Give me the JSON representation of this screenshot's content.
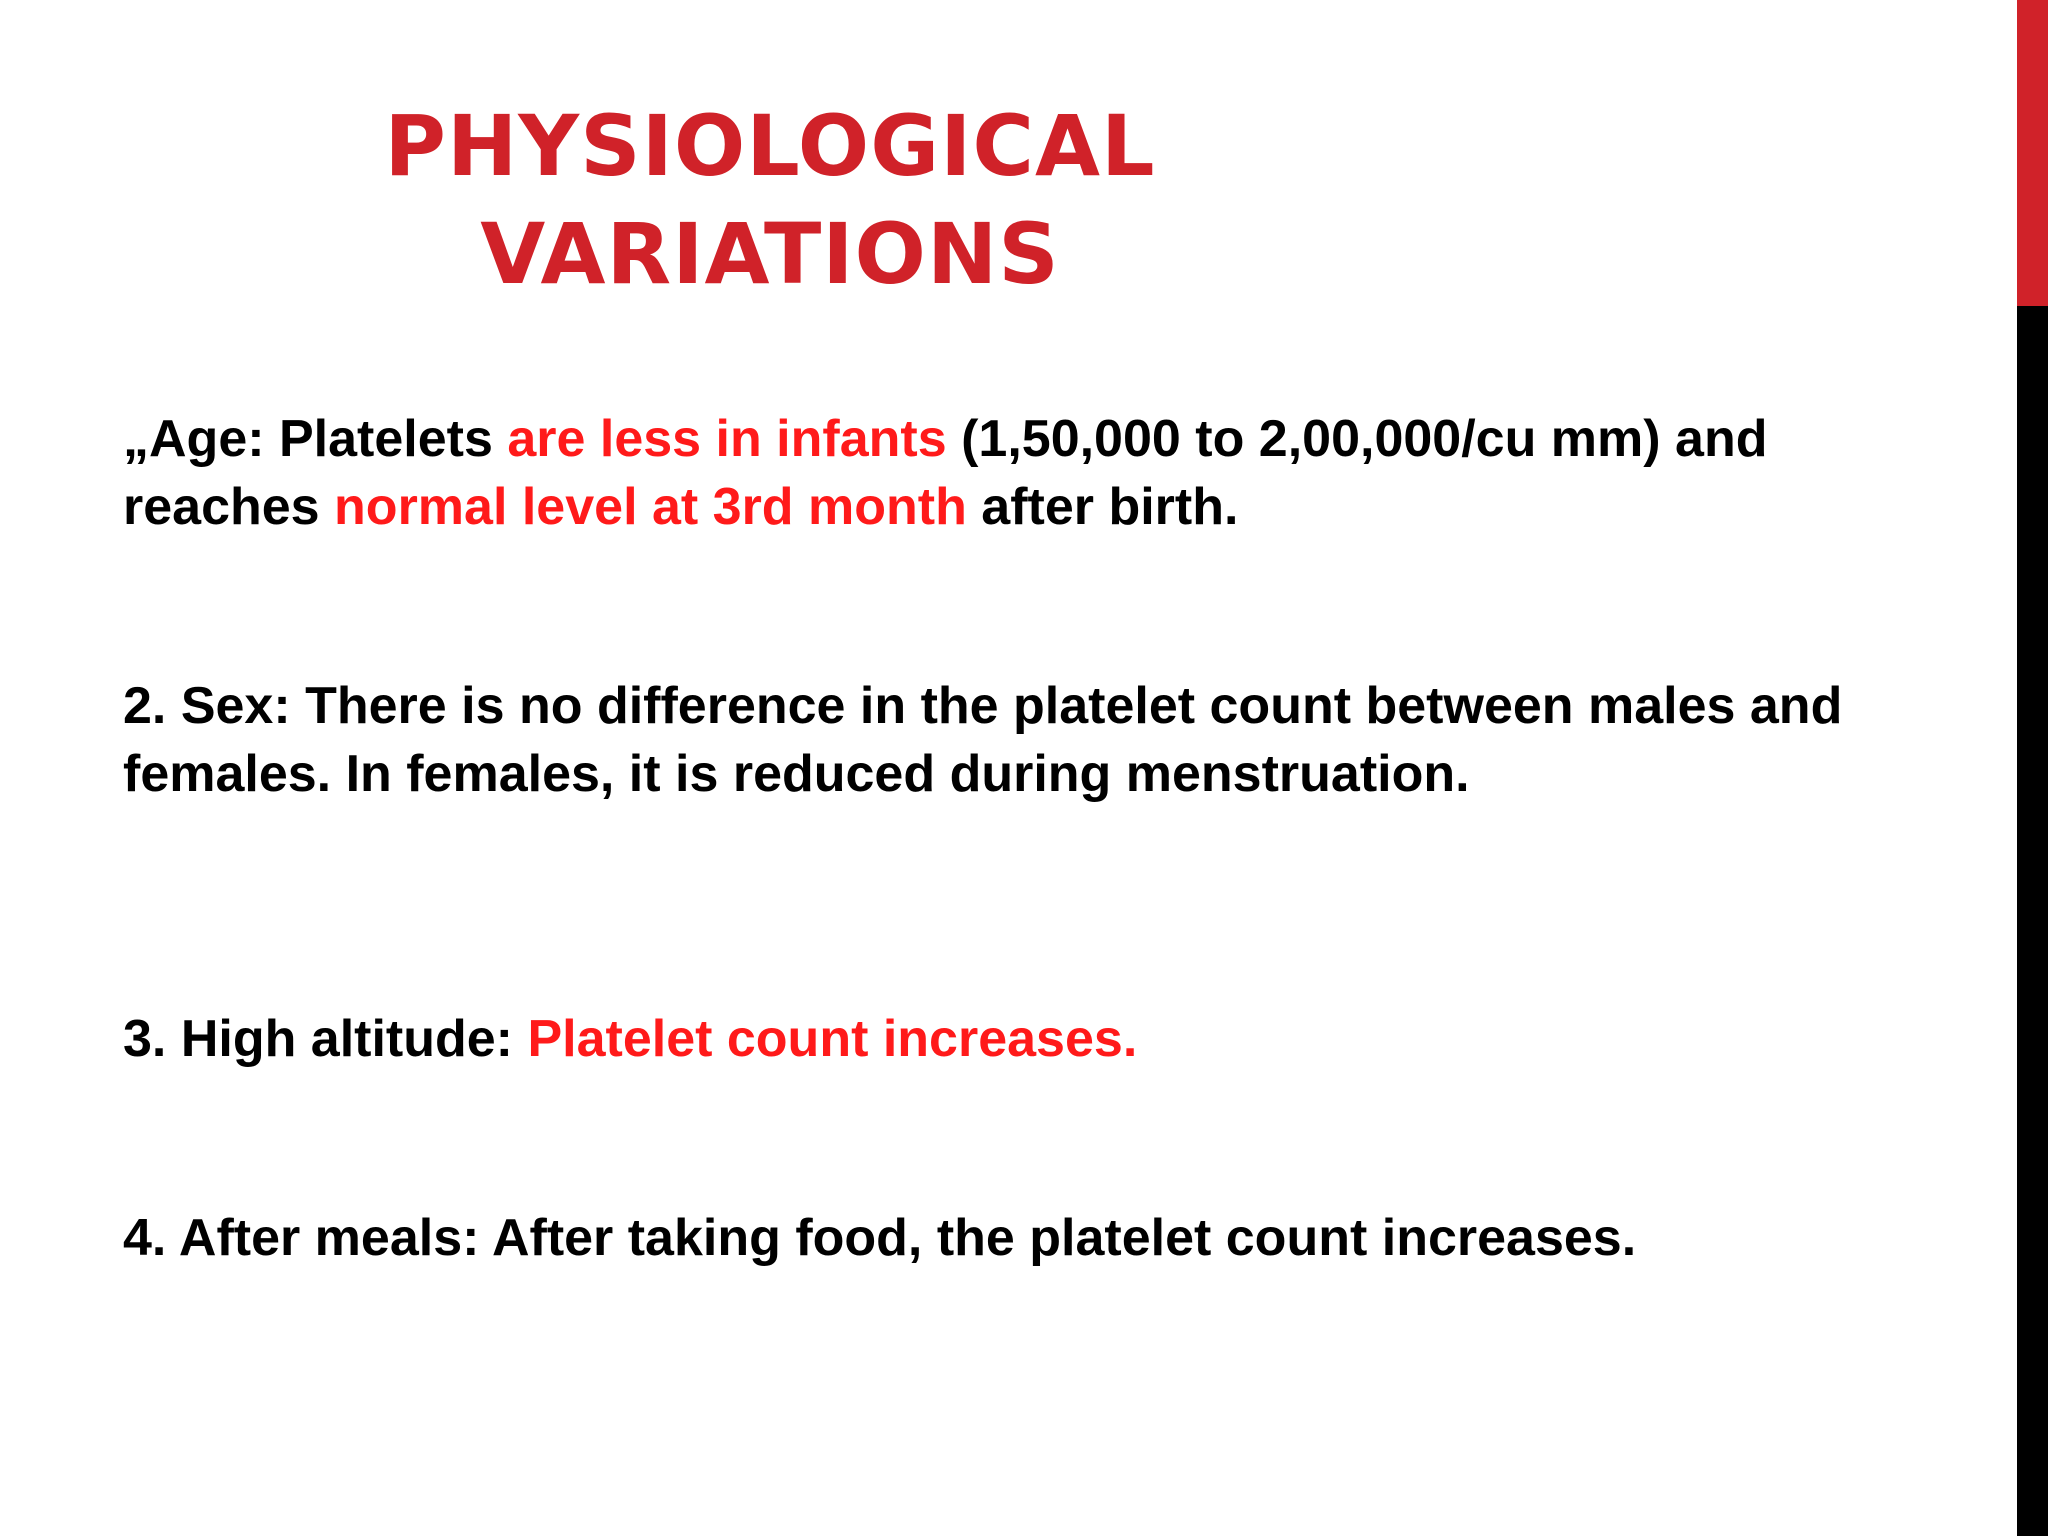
{
  "slide": {
    "title_line1": "PHYSIOLOGICAL",
    "title_line2": "VARIATIONS",
    "points": [
      {
        "seg1": "„Age: Platelets ",
        "red1": "are less in infants",
        "seg2": " (1,50,000 to 2,00,000/cu mm) and reaches ",
        "red2": "normal level at 3rd month",
        "seg3": " after birth."
      },
      {
        "text": "2. Sex: There is no difference in the platelet count between males and females. In females, it is reduced during menstruation."
      },
      {
        "seg1": "3. High altitude: ",
        "red1": "Platelet count increases."
      },
      {
        "text": "4. After meals: After taking food, the platelet count increases."
      }
    ]
  },
  "colors": {
    "title": "#d02229",
    "highlight": "#ff1a1a",
    "body_text": "#000000",
    "side_bar": "#000000",
    "side_bar_accent": "#d02229"
  }
}
